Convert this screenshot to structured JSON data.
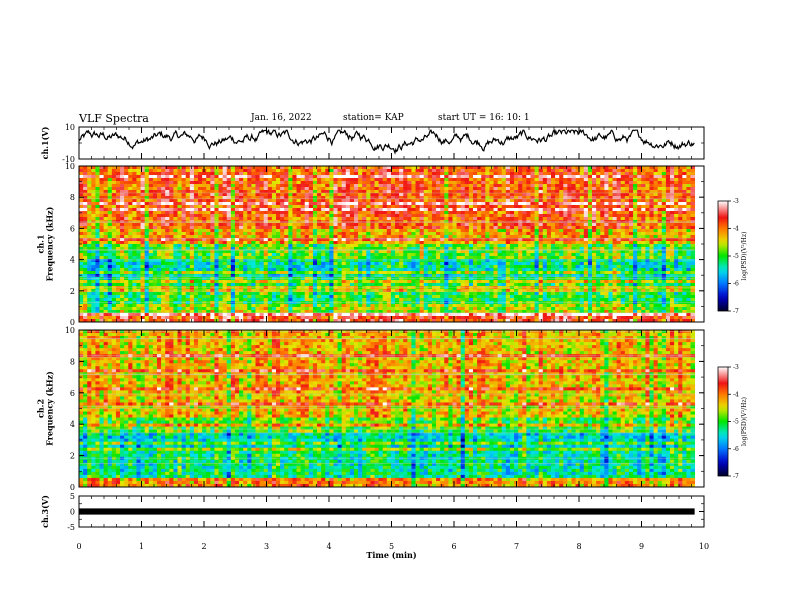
{
  "header": {
    "title": "VLF Spectra",
    "date": "Jan. 16, 2022",
    "station": "station= KAP",
    "start": "start  UT =   16: 10: 1"
  },
  "chart_data": [
    {
      "type": "line",
      "name": "ch1-waveform",
      "ylabel": "ch.1(V)",
      "ylim": [
        -10,
        10
      ],
      "y_ticks": [
        "10",
        "-10"
      ],
      "xlim": [
        0,
        10
      ],
      "x_end": 9.85,
      "color": "#000000",
      "description_values": {
        "mean": 0,
        "amplitude_range": [
          -7,
          8
        ]
      }
    },
    {
      "type": "heatmap",
      "name": "ch1-spectrogram",
      "ylabel": "ch.1\nFrequency  (kHz)",
      "ylabel_lines": [
        "ch.1",
        "Frequency  (kHz)"
      ],
      "ylim": [
        0,
        10
      ],
      "y_ticks": [
        "0",
        "2",
        "4",
        "6",
        "8",
        "10"
      ],
      "xlim": [
        0,
        10
      ],
      "x_end": 9.85,
      "colorbar": {
        "label": "log(PSD)(V²/Hz)",
        "range": [
          -7,
          -3
        ],
        "ticks": [
          "-3",
          "-4",
          "-5",
          "-6",
          "-7"
        ]
      },
      "bands": [
        {
          "from": 0,
          "to": 0.5,
          "level": -3.6
        },
        {
          "from": 0.5,
          "to": 1.2,
          "level": -4.6
        },
        {
          "from": 1.2,
          "to": 2.8,
          "level": -5.0
        },
        {
          "from": 2.8,
          "to": 4.0,
          "level": -5.3
        },
        {
          "from": 4.0,
          "to": 5.0,
          "level": -4.8
        },
        {
          "from": 5.0,
          "to": 6.0,
          "level": -4.2
        },
        {
          "from": 6.0,
          "to": 10.0,
          "level": -3.8
        }
      ]
    },
    {
      "type": "heatmap",
      "name": "ch2-spectrogram",
      "ylabel_lines": [
        "ch.2",
        "Frequency  (kHz)"
      ],
      "ylim": [
        0,
        10
      ],
      "y_ticks": [
        "0",
        "2",
        "4",
        "6",
        "8",
        "10"
      ],
      "xlim": [
        0,
        10
      ],
      "x_end": 9.85,
      "colorbar": {
        "label": "log(PSD)(V²/Hz)",
        "range": [
          -7,
          -3
        ],
        "ticks": [
          "-3",
          "-4",
          "-5",
          "-6",
          "-7"
        ]
      },
      "bands": [
        {
          "from": 0,
          "to": 0.5,
          "level": -4.0
        },
        {
          "from": 0.5,
          "to": 2.5,
          "level": -5.2
        },
        {
          "from": 2.5,
          "to": 3.5,
          "level": -5.4
        },
        {
          "from": 3.5,
          "to": 4.5,
          "level": -4.8
        },
        {
          "from": 4.5,
          "to": 6.0,
          "level": -4.3
        },
        {
          "from": 6.0,
          "to": 10.0,
          "level": -4.2
        }
      ]
    },
    {
      "type": "line",
      "name": "ch3-waveform",
      "ylabel": "ch.3(V)",
      "ylim": [
        -5,
        5
      ],
      "y_ticks": [
        "5",
        "0",
        "-5"
      ],
      "xlim": [
        0,
        10
      ],
      "x_end": 9.85,
      "band": [
        -1,
        1
      ],
      "color": "#000000"
    }
  ],
  "x_axis": {
    "label": "Time  (min)",
    "ticks": [
      "0",
      "1",
      "2",
      "3",
      "4",
      "5",
      "6",
      "7",
      "8",
      "9",
      "10"
    ]
  }
}
